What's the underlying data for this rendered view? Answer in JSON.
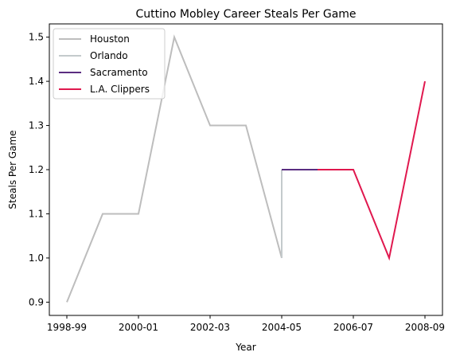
{
  "chart_data": {
    "type": "line",
    "title": "Cuttino Mobley Career Steals Per Game",
    "xlabel": "Year",
    "ylabel": "Steals Per Game",
    "x": [
      "1998-99",
      "1999-00",
      "2000-01",
      "2001-02",
      "2002-03",
      "2003-04",
      "2004-05",
      "2005-06",
      "2006-07",
      "2007-08",
      "2008-09"
    ],
    "xticks": [
      "1998-99",
      "2000-01",
      "2002-03",
      "2004-05",
      "2006-07",
      "2008-09"
    ],
    "ylim": [
      0.87,
      1.53
    ],
    "yticks": [
      "0.9",
      "1.0",
      "1.1",
      "1.2",
      "1.3",
      "1.4",
      "1.5"
    ],
    "legend_position": "top-left",
    "grid": false,
    "series": [
      {
        "name": "Houston",
        "color": "#bdbdbd",
        "points": [
          [
            "1998-99",
            0.9
          ],
          [
            "1999-00",
            1.1
          ],
          [
            "2000-01",
            1.1
          ],
          [
            "2001-02",
            1.5
          ],
          [
            "2002-03",
            1.3
          ],
          [
            "2003-04",
            1.3
          ],
          [
            "2004-05",
            1.0
          ]
        ]
      },
      {
        "name": "Orlando",
        "color": "#c4cacc",
        "points": [
          [
            "2004-05",
            1.0
          ],
          [
            "2004-05",
            1.2
          ]
        ]
      },
      {
        "name": "Sacramento",
        "color": "#5a2d81",
        "points": [
          [
            "2004-05",
            1.2
          ],
          [
            "2005-06",
            1.2
          ]
        ]
      },
      {
        "name": "L.A. Clippers",
        "color": "#e0184e",
        "points": [
          [
            "2005-06",
            1.2
          ],
          [
            "2006-07",
            1.2
          ],
          [
            "2007-08",
            1.0
          ],
          [
            "2008-09",
            1.4
          ]
        ]
      }
    ]
  }
}
